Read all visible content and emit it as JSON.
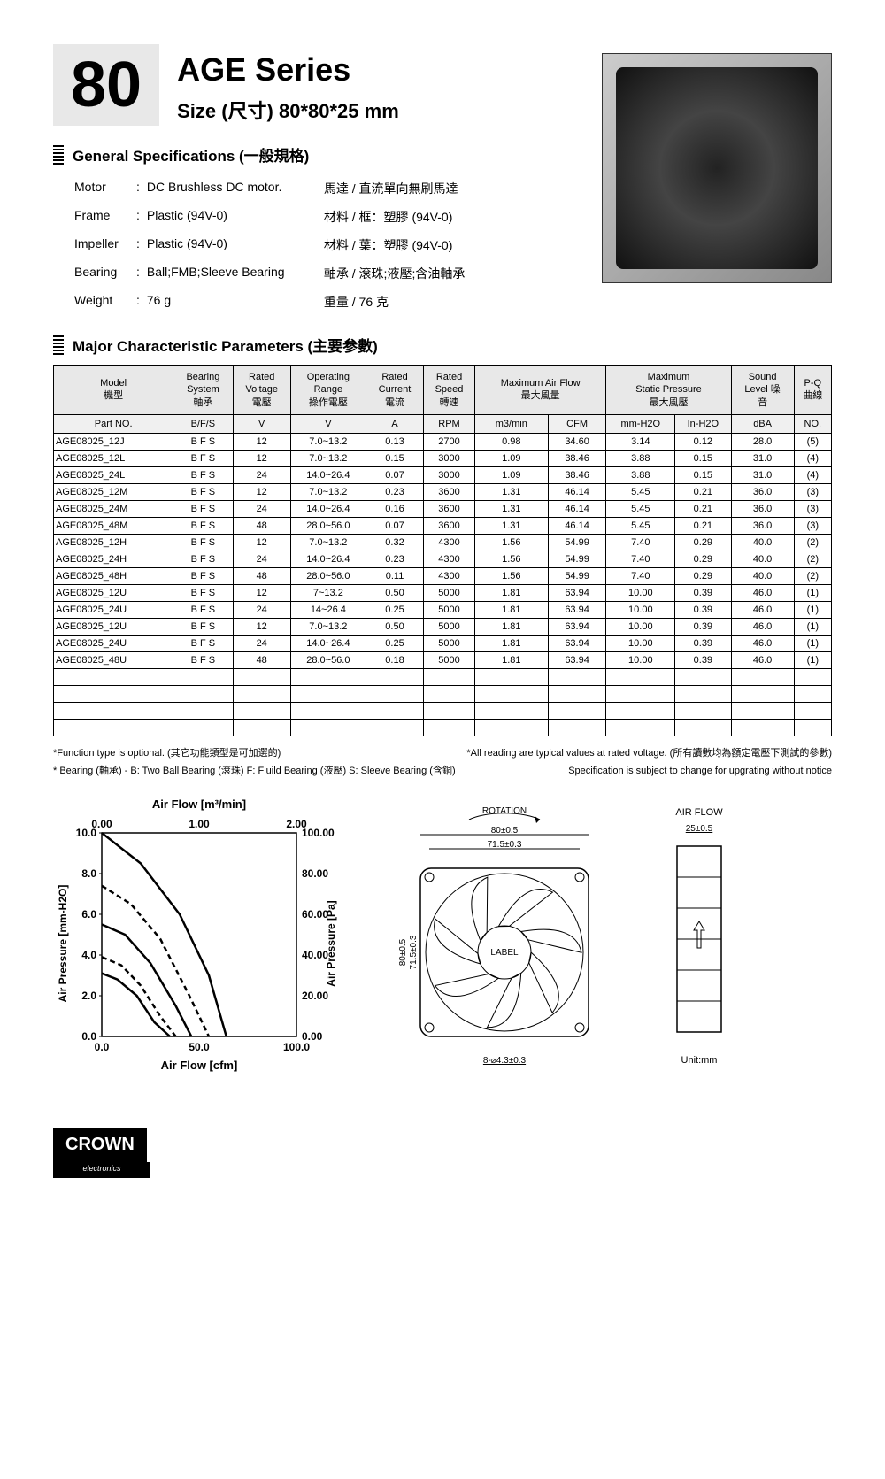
{
  "header": {
    "number": "80",
    "series": "AGE Series",
    "size": "Size (尺寸) 80*80*25 mm"
  },
  "general": {
    "heading": "General Specifications (一般規格)",
    "rows": [
      {
        "label": "Motor",
        "value": "DC Brushless DC motor.",
        "cn": "馬達 / 直流單向無刷馬達"
      },
      {
        "label": "Frame",
        "value": "Plastic (94V-0)",
        "cn": "材料 / 框：塑膠 (94V-0)"
      },
      {
        "label": "Impeller",
        "value": "Plastic (94V-0)",
        "cn": "材料 / 葉：塑膠 (94V-0)"
      },
      {
        "label": "Bearing",
        "value": "Ball;FMB;Sleeve Bearing",
        "cn": "軸承 / 滾珠;液壓;含油軸承"
      },
      {
        "label": "Weight",
        "value": "76 g",
        "cn": "重量 / 76 克"
      }
    ]
  },
  "major": {
    "heading": "Major Characteristic Parameters (主要参數)",
    "header1": [
      "Model\n機型",
      "Bearing\nSystem\n軸承",
      "Rated\nVoltage\n電壓",
      "Operating\nRange\n操作電壓",
      "Rated\nCurrent\n電流",
      "Rated\nSpeed\n轉速",
      "Maximum Air Flow\n最大風量",
      "Maximum\nStatic Pressure\n最大風壓",
      "Sound\nLevel 噪\n音",
      "P-Q\n曲線"
    ],
    "header2": [
      "Part NO.",
      "B/F/S",
      "V",
      "V",
      "A",
      "RPM",
      "m3/min",
      "CFM",
      "mm-H2O",
      "In-H2O",
      "dBA",
      "NO."
    ],
    "rows": [
      [
        "AGE08025_12J",
        "B F S",
        "12",
        "7.0~13.2",
        "0.13",
        "2700",
        "0.98",
        "34.60",
        "3.14",
        "0.12",
        "28.0",
        "(5)"
      ],
      [
        "AGE08025_12L",
        "B F S",
        "12",
        "7.0~13.2",
        "0.15",
        "3000",
        "1.09",
        "38.46",
        "3.88",
        "0.15",
        "31.0",
        "(4)"
      ],
      [
        "AGE08025_24L",
        "B F S",
        "24",
        "14.0~26.4",
        "0.07",
        "3000",
        "1.09",
        "38.46",
        "3.88",
        "0.15",
        "31.0",
        "(4)"
      ],
      [
        "AGE08025_12M",
        "B F S",
        "12",
        "7.0~13.2",
        "0.23",
        "3600",
        "1.31",
        "46.14",
        "5.45",
        "0.21",
        "36.0",
        "(3)"
      ],
      [
        "AGE08025_24M",
        "B F S",
        "24",
        "14.0~26.4",
        "0.16",
        "3600",
        "1.31",
        "46.14",
        "5.45",
        "0.21",
        "36.0",
        "(3)"
      ],
      [
        "AGE08025_48M",
        "B F S",
        "48",
        "28.0~56.0",
        "0.07",
        "3600",
        "1.31",
        "46.14",
        "5.45",
        "0.21",
        "36.0",
        "(3)"
      ],
      [
        "AGE08025_12H",
        "B F S",
        "12",
        "7.0~13.2",
        "0.32",
        "4300",
        "1.56",
        "54.99",
        "7.40",
        "0.29",
        "40.0",
        "(2)"
      ],
      [
        "AGE08025_24H",
        "B F S",
        "24",
        "14.0~26.4",
        "0.23",
        "4300",
        "1.56",
        "54.99",
        "7.40",
        "0.29",
        "40.0",
        "(2)"
      ],
      [
        "AGE08025_48H",
        "B F S",
        "48",
        "28.0~56.0",
        "0.11",
        "4300",
        "1.56",
        "54.99",
        "7.40",
        "0.29",
        "40.0",
        "(2)"
      ],
      [
        "AGE08025_12U",
        "B F S",
        "12",
        "7~13.2",
        "0.50",
        "5000",
        "1.81",
        "63.94",
        "10.00",
        "0.39",
        "46.0",
        "(1)"
      ],
      [
        "AGE08025_24U",
        "B F S",
        "24",
        "14~26.4",
        "0.25",
        "5000",
        "1.81",
        "63.94",
        "10.00",
        "0.39",
        "46.0",
        "(1)"
      ],
      [
        "AGE08025_12U",
        "B F S",
        "12",
        "7.0~13.2",
        "0.50",
        "5000",
        "1.81",
        "63.94",
        "10.00",
        "0.39",
        "46.0",
        "(1)"
      ],
      [
        "AGE08025_24U",
        "B F S",
        "24",
        "14.0~26.4",
        "0.25",
        "5000",
        "1.81",
        "63.94",
        "10.00",
        "0.39",
        "46.0",
        "(1)"
      ],
      [
        "AGE08025_48U",
        "B F S",
        "48",
        "28.0~56.0",
        "0.18",
        "5000",
        "1.81",
        "63.94",
        "10.00",
        "0.39",
        "46.0",
        "(1)"
      ]
    ],
    "empty_rows": 4
  },
  "footnotes": {
    "l1a": "*Function type is optional. (其它功能類型是可加選的)",
    "l1b": "*All reading are typical values at rated voltage. (所有讀數均為額定電壓下測試的參數)",
    "l2a": "* Bearing (軸承) - B: Two Ball Bearing (滾珠) F: Fluild Bearing (液壓) S: Sleeve Bearing (含銅)",
    "l2b": "Specification is subject to change for upgrating without notice"
  },
  "chart": {
    "top_title": "Air Flow [m³/min]",
    "bottom_title": "Air Flow [cfm]",
    "left_label": "Air Pressure [mm-H2O]",
    "right_label": "Air Pressure [Pa]",
    "top_ticks": [
      "0.00",
      "1.00",
      "2.00"
    ],
    "bottom_ticks": [
      "0.0",
      "50.0",
      "100.0"
    ],
    "left_ticks": [
      "10.0",
      "8.0",
      "6.0",
      "4.0",
      "2.0",
      "0.0"
    ],
    "right_ticks": [
      "100.00",
      "80.00",
      "60.00",
      "40.00",
      "20.00",
      "0.00"
    ],
    "curves": [
      {
        "color": "#000",
        "dash": "",
        "width": 2.5,
        "points": [
          [
            0,
            10
          ],
          [
            20,
            8.5
          ],
          [
            40,
            6.0
          ],
          [
            55,
            3.0
          ],
          [
            64,
            0
          ]
        ]
      },
      {
        "color": "#000",
        "dash": "6,4",
        "width": 2.5,
        "points": [
          [
            0,
            7.4
          ],
          [
            15,
            6.5
          ],
          [
            30,
            4.8
          ],
          [
            45,
            2.0
          ],
          [
            55,
            0
          ]
        ]
      },
      {
        "color": "#000",
        "dash": "",
        "width": 2.5,
        "points": [
          [
            0,
            5.5
          ],
          [
            12,
            5.0
          ],
          [
            25,
            3.6
          ],
          [
            38,
            1.5
          ],
          [
            46,
            0
          ]
        ]
      },
      {
        "color": "#000",
        "dash": "6,4",
        "width": 2.5,
        "points": [
          [
            0,
            3.9
          ],
          [
            10,
            3.5
          ],
          [
            20,
            2.5
          ],
          [
            30,
            1.0
          ],
          [
            38,
            0
          ]
        ]
      },
      {
        "color": "#000",
        "dash": "",
        "width": 2.5,
        "points": [
          [
            0,
            3.1
          ],
          [
            8,
            2.8
          ],
          [
            18,
            2.0
          ],
          [
            27,
            0.7
          ],
          [
            35,
            0
          ]
        ]
      }
    ],
    "xlim": [
      0,
      100
    ],
    "ylim": [
      0,
      10
    ]
  },
  "fan_drawing": {
    "rotation": "ROTATION",
    "w": "80±0.5",
    "inner": "71.5±0.3",
    "h": "80±0.5",
    "hinner": "71.5±0.3",
    "label": "LABEL",
    "hole": "8-⌀4.3±0.3"
  },
  "side_drawing": {
    "title": "AIR FLOW",
    "depth": "25±0.5",
    "unit": "Unit:mm"
  },
  "logo": {
    "brand": "CROWN",
    "sub": "electronics"
  }
}
